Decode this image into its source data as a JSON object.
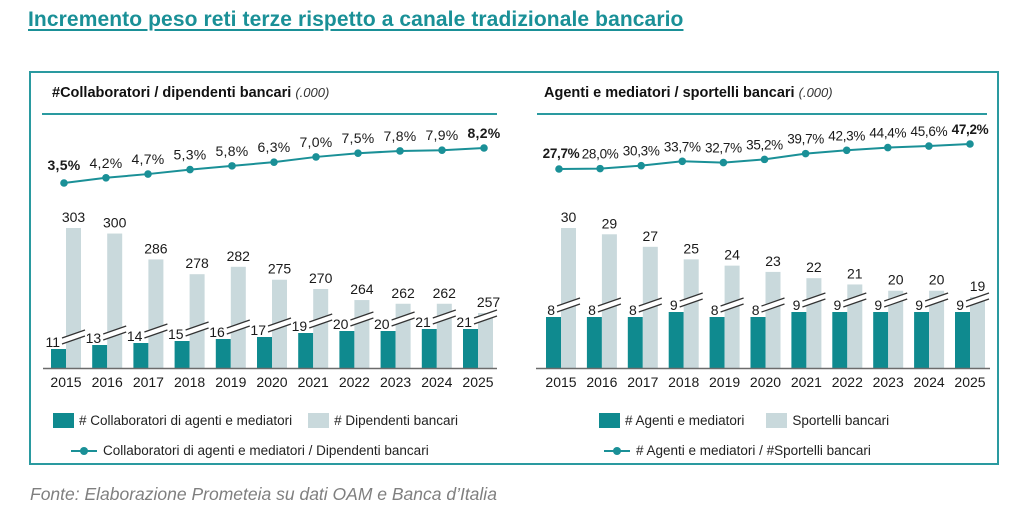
{
  "title": "Incremento peso reti terze rispetto a canale tradizionale bancario",
  "source": "Fonte: Elaborazione Prometeia su dati OAM e Banca d’Italia",
  "colors": {
    "accent": "#1a9097",
    "dark_bar": "#0f8a8f",
    "light_bar": "#c9d9dc",
    "frame": "#2a9aa0"
  },
  "panels": [
    {
      "title": "#Collaboratori / dipendenti bancari",
      "unit": "(.000)",
      "legend": {
        "bar1": "# Collaboratori di agenti e mediatori",
        "bar2": "# Dipendenti bancari",
        "line": "Collaboratori di agenti e mediatori / Dipendenti bancari"
      }
    },
    {
      "title": "Agenti e mediatori / sportelli bancari",
      "unit": "(.000)",
      "legend": {
        "bar1": "# Agenti e mediatori",
        "bar2": "Sportelli bancari",
        "line": "# Agenti e mediatori / #Sportelli bancari"
      }
    }
  ],
  "chart_data": [
    {
      "type": "bar",
      "title": "#Collaboratori / dipendenti bancari (.000)",
      "categories": [
        "2015",
        "2016",
        "2017",
        "2018",
        "2019",
        "2020",
        "2021",
        "2022",
        "2023",
        "2024",
        "2025"
      ],
      "series": [
        {
          "name": "# Collaboratori di agenti e mediatori",
          "type": "bar",
          "values": [
            11,
            13,
            14,
            15,
            16,
            17,
            19,
            20,
            20,
            21,
            21
          ]
        },
        {
          "name": "# Dipendenti bancari",
          "type": "bar",
          "values": [
            303,
            300,
            286,
            278,
            282,
            275,
            270,
            264,
            262,
            262,
            257
          ]
        },
        {
          "name": "Collaboratori di agenti e mediatori / Dipendenti bancari",
          "type": "line",
          "values": [
            3.5,
            4.2,
            4.7,
            5.3,
            5.8,
            6.3,
            7.0,
            7.5,
            7.8,
            7.9,
            8.2
          ],
          "labels": [
            "3,5%",
            "4,2%",
            "4,7%",
            "5,3%",
            "5,8%",
            "6,3%",
            "7,0%",
            "7,5%",
            "7,8%",
            "7,9%",
            "8,2%"
          ],
          "bold_labels": [
            0,
            10
          ]
        }
      ],
      "axis_break": true,
      "xlabel": "",
      "ylabel": "",
      "legend": "bottom"
    },
    {
      "type": "bar",
      "title": "Agenti e mediatori / sportelli bancari (.000)",
      "categories": [
        "2015",
        "2016",
        "2017",
        "2018",
        "2019",
        "2020",
        "2021",
        "2022",
        "2023",
        "2024",
        "2025"
      ],
      "series": [
        {
          "name": "# Agenti e mediatori",
          "type": "bar",
          "values": [
            8,
            8,
            8,
            9,
            8,
            8,
            9,
            9,
            9,
            9,
            9
          ]
        },
        {
          "name": "Sportelli bancari",
          "type": "bar",
          "values": [
            30,
            29,
            27,
            25,
            24,
            23,
            22,
            21,
            20,
            20,
            19
          ]
        },
        {
          "name": "# Agenti e mediatori / #Sportelli bancari",
          "type": "line",
          "values": [
            27.7,
            28.0,
            30.3,
            33.7,
            32.7,
            35.2,
            39.7,
            42.3,
            44.4,
            45.6,
            47.2
          ],
          "labels": [
            "27,7%",
            "28,0%",
            "30,3%",
            "33,7%",
            "32,7%",
            "35,2%",
            "39,7%",
            "42,3%",
            "44,4%",
            "45,6%",
            "47,2%"
          ],
          "bold_labels": [
            0,
            10
          ]
        }
      ],
      "axis_break": true,
      "xlabel": "",
      "ylabel": "",
      "legend": "bottom"
    }
  ]
}
